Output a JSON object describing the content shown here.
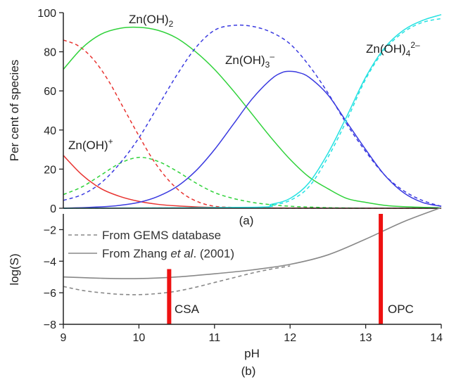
{
  "chart_data": [
    {
      "type": "line",
      "caption": "(a)",
      "xlabel": "",
      "ylabel": "Per cent of species",
      "xlim": [
        9,
        14
      ],
      "ylim": [
        0,
        100
      ],
      "yticks": [
        "0",
        "20",
        "40",
        "60",
        "80",
        "100"
      ],
      "labels": [
        {
          "base": "Zn(OH)",
          "sub": "2",
          "sup": ""
        },
        {
          "base": "Zn(OH)",
          "sub": "3",
          "sup": "–"
        },
        {
          "base": "Zn(OH)",
          "sub": "4",
          "sup": "2–"
        },
        {
          "base": "Zn(OH)",
          "sub": "",
          "sup": "+"
        }
      ],
      "series": [
        {
          "color": "#e8322f",
          "style": "solid",
          "x": [
            9.0,
            9.25,
            9.5,
            9.75,
            10.0,
            10.25,
            10.5,
            11.0,
            11.5,
            12.0,
            13.0,
            14.0
          ],
          "y": [
            27,
            17,
            10,
            6,
            3.5,
            2,
            1.2,
            0.4,
            0.2,
            0.1,
            0,
            0
          ]
        },
        {
          "color": "#e8322f",
          "style": "dashed",
          "x": [
            9.0,
            9.2,
            9.4,
            9.6,
            9.8,
            10.0,
            10.2,
            10.4,
            10.6,
            10.8,
            11.0,
            11.2,
            11.5,
            12.0,
            13.0,
            14.0
          ],
          "y": [
            86,
            83,
            76,
            65,
            51,
            37,
            24,
            14,
            7,
            3,
            1,
            0.5,
            0.2,
            0,
            0,
            0
          ]
        },
        {
          "color": "#2fd23a",
          "style": "solid",
          "x": [
            9.0,
            9.25,
            9.5,
            9.75,
            10.0,
            10.25,
            10.5,
            10.75,
            11.0,
            11.25,
            11.5,
            11.75,
            12.0,
            12.25,
            12.5,
            12.75,
            13.0,
            13.25,
            13.5,
            14.0
          ],
          "y": [
            71,
            82,
            89,
            92,
            92.5,
            91,
            87,
            80,
            71,
            60,
            48,
            36,
            25,
            16,
            10,
            5,
            3,
            1.5,
            0.8,
            0.2
          ]
        },
        {
          "color": "#2fd23a",
          "style": "dashed",
          "x": [
            9.0,
            9.25,
            9.5,
            9.75,
            10.0,
            10.25,
            10.5,
            10.75,
            11.0,
            11.25,
            11.5,
            11.75,
            12.0,
            12.5,
            13.0
          ],
          "y": [
            7,
            11,
            17,
            23,
            26,
            24,
            19,
            13,
            8,
            5,
            3,
            1.8,
            1,
            0.3,
            0
          ]
        },
        {
          "color": "#3a3ae0",
          "style": "solid",
          "x": [
            9.0,
            9.5,
            9.75,
            10.0,
            10.25,
            10.5,
            10.75,
            11.0,
            11.25,
            11.5,
            11.75,
            11.9,
            12.0,
            12.1,
            12.25,
            12.5,
            12.75,
            13.0,
            13.25,
            13.5,
            13.75,
            14.0
          ],
          "y": [
            0,
            0.7,
            1.5,
            3,
            6,
            11,
            19,
            30,
            43,
            56,
            66,
            69.5,
            70,
            69.5,
            67,
            58,
            44,
            30,
            17,
            8,
            3,
            1
          ]
        },
        {
          "color": "#3a3ae0",
          "style": "dashed",
          "x": [
            9.0,
            9.25,
            9.5,
            9.75,
            10.0,
            10.25,
            10.5,
            10.75,
            11.0,
            11.25,
            11.5,
            11.75,
            12.0,
            12.25,
            12.5,
            12.75,
            13.0,
            13.25,
            13.5,
            13.75,
            14.0
          ],
          "y": [
            4,
            7,
            13,
            23,
            36,
            52,
            68,
            82,
            91,
            93.5,
            93,
            90,
            84,
            73,
            59,
            43,
            29,
            17,
            9,
            4,
            1
          ]
        },
        {
          "color": "#25e2e2",
          "style": "solid",
          "x": [
            9.0,
            11.5,
            11.75,
            12.0,
            12.25,
            12.5,
            12.75,
            13.0,
            13.25,
            13.5,
            13.75,
            14.0
          ],
          "y": [
            0,
            0.5,
            2,
            5,
            13,
            28,
            47,
            67,
            82,
            91,
            96,
            99
          ]
        },
        {
          "color": "#25e2e2",
          "style": "dashed",
          "x": [
            9.0,
            11.5,
            11.75,
            12.0,
            12.25,
            12.5,
            12.75,
            13.0,
            13.25,
            13.5,
            13.75,
            14.0
          ],
          "y": [
            0,
            0.4,
            1.5,
            4,
            11,
            26,
            45,
            66,
            81,
            90,
            95,
            97
          ]
        }
      ]
    },
    {
      "type": "line",
      "caption": "(b)",
      "xlabel": "pH",
      "ylabel": "log(S)",
      "xlim": [
        9,
        14
      ],
      "ylim": [
        -8,
        -1
      ],
      "xticks": [
        "9",
        "10",
        "11",
        "12",
        "13",
        "14"
      ],
      "yticks": [
        "−8",
        "−6",
        "−4",
        "−2"
      ],
      "legend": [
        {
          "style": "dashed",
          "label": "From GEMS database"
        },
        {
          "style": "solid",
          "label_pre": "From Zhang ",
          "label_em": "et al",
          "label_post": ". (2001)"
        }
      ],
      "series": [
        {
          "color": "#888888",
          "style": "dashed",
          "x": [
            9.0,
            9.25,
            9.5,
            9.75,
            10.0,
            10.25,
            10.5,
            10.75,
            11.0,
            11.25,
            11.5,
            11.75,
            12.0
          ],
          "y": [
            -5.6,
            -5.85,
            -6.0,
            -6.1,
            -6.12,
            -6.05,
            -5.9,
            -5.65,
            -5.35,
            -5.05,
            -4.75,
            -4.5,
            -4.3
          ]
        },
        {
          "color": "#888888",
          "style": "solid",
          "x": [
            9.0,
            9.5,
            10.0,
            10.5,
            11.0,
            11.5,
            12.0,
            12.5,
            13.0,
            13.5,
            14.0
          ],
          "y": [
            -5.0,
            -5.08,
            -5.1,
            -5.0,
            -4.8,
            -4.55,
            -4.2,
            -3.6,
            -2.6,
            -1.5,
            -0.6
          ]
        }
      ],
      "markers": [
        {
          "label": "CSA",
          "x": 10.4,
          "y0": -8,
          "y1": -4.5,
          "color": "#ee1111"
        },
        {
          "label": "OPC",
          "x": 13.2,
          "y0": -8,
          "y1": -1.0,
          "color": "#ee1111"
        }
      ]
    }
  ]
}
